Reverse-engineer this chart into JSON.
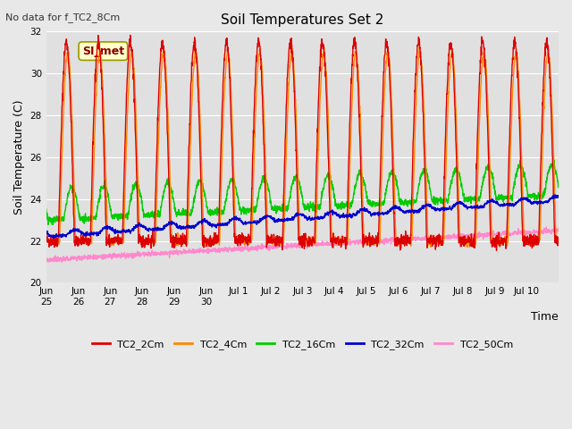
{
  "title": "Soil Temperatures Set 2",
  "subtitle": "No data for f_TC2_8Cm",
  "ylabel": "Soil Temperature (C)",
  "xlabel": "Time",
  "ylim": [
    20,
    32
  ],
  "annotation_label": "SI_met",
  "x_tick_labels": [
    "Jun\n25",
    "Jun\n26",
    "Jun\n27",
    "Jun\n28",
    "Jun\n29",
    "Jun\n30",
    "Jul 1",
    "Jul 2",
    "Jul 3",
    "Jul 4",
    "Jul 5",
    "Jul 6",
    "Jul 7",
    "Jul 8",
    "Jul 9",
    "Jul 10"
  ],
  "series_colors": {
    "TC2_2Cm": "#dd0000",
    "TC2_4Cm": "#ff8800",
    "TC2_16Cm": "#00cc00",
    "TC2_32Cm": "#0000cc",
    "TC2_50Cm": "#ff88cc"
  },
  "series_names": [
    "TC2_2Cm",
    "TC2_4Cm",
    "TC2_16Cm",
    "TC2_32Cm",
    "TC2_50Cm"
  ],
  "yticks": [
    20,
    22,
    24,
    26,
    28,
    30,
    32
  ],
  "background_color": "#e8e8e8",
  "plot_bg_color": "#e0e0e0",
  "grid_color": "#ffffff",
  "n_days": 16,
  "pts_per_day": 144
}
